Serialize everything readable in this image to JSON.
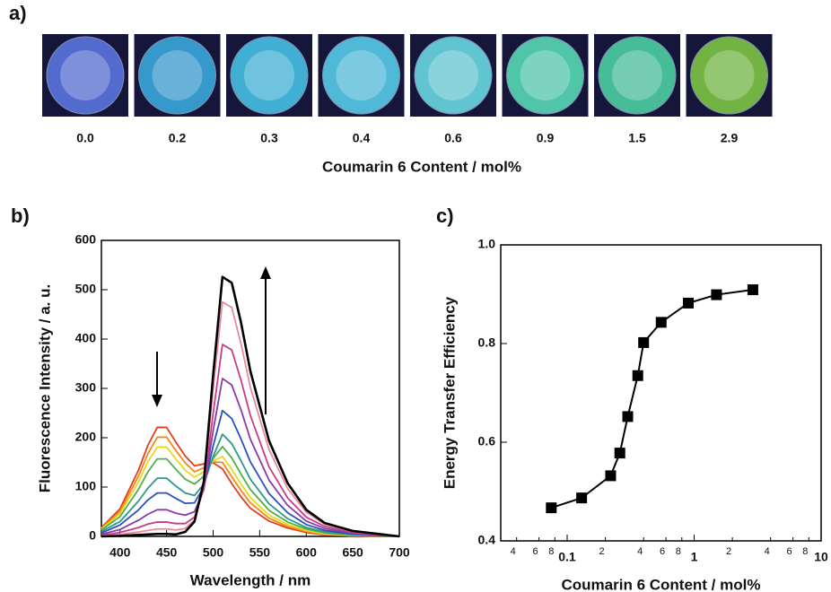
{
  "panel_labels": [
    "a)",
    "b)",
    "c)"
  ],
  "photos": {
    "labels": [
      "0.0",
      "0.2",
      "0.3",
      "0.4",
      "0.6",
      "0.9",
      "1.5",
      "2.9"
    ],
    "caption": "Coumarin 6 Content / mol%"
  },
  "chart_data": [
    {
      "type": "line",
      "xlabel": "Wavelength / nm",
      "ylabel": "Fluorescence Intensity / a. u.",
      "x": [
        380,
        400,
        420,
        430,
        440,
        450,
        460,
        470,
        480,
        490,
        500,
        510,
        520,
        530,
        540,
        560,
        580,
        600,
        620,
        650,
        700
      ],
      "xlim": [
        380,
        700
      ],
      "xticks": [
        400,
        450,
        500,
        550,
        600,
        650,
        700
      ],
      "ylim": [
        0,
        600
      ],
      "yticks": [
        0,
        100,
        200,
        300,
        400,
        500,
        600
      ],
      "series": [
        {
          "color": "#e63c1e",
          "values": [
            18,
            56,
            135,
            185,
            221,
            221,
            191,
            163,
            143,
            147,
            149,
            137,
            107,
            80,
            57,
            31,
            17,
            8,
            3,
            1,
            0
          ]
        },
        {
          "color": "#f08a1a",
          "values": [
            16,
            51,
            123,
            168,
            201,
            201,
            174,
            149,
            131,
            139,
            151,
            150,
            121,
            93,
            68,
            37,
            20,
            10,
            4,
            2,
            0
          ]
        },
        {
          "color": "#e8d81e",
          "values": [
            15,
            46,
            111,
            152,
            181,
            181,
            157,
            134,
            120,
            131,
            153,
            162,
            136,
            106,
            79,
            43,
            24,
            12,
            5,
            2,
            0
          ]
        },
        {
          "color": "#4fb04a",
          "values": [
            13,
            40,
            96,
            131,
            157,
            157,
            136,
            116,
            106,
            122,
            158,
            182,
            159,
            126,
            95,
            53,
            29,
            15,
            7,
            3,
            0
          ]
        },
        {
          "color": "#2a9a8a",
          "values": [
            10,
            30,
            72,
            98,
            118,
            118,
            102,
            88,
            83,
            106,
            162,
            207,
            188,
            153,
            116,
            66,
            36,
            18,
            9,
            3,
            0
          ]
        },
        {
          "color": "#2a4fc0",
          "values": [
            7,
            23,
            54,
            74,
            88,
            88,
            77,
            67,
            68,
            100,
            183,
            255,
            239,
            197,
            151,
            87,
            48,
            24,
            12,
            5,
            0
          ]
        },
        {
          "color": "#8a3aa8",
          "values": [
            4,
            14,
            33,
            45,
            54,
            54,
            47,
            43,
            50,
            95,
            214,
            320,
            307,
            256,
            197,
            114,
            63,
            31,
            16,
            6,
            0
          ]
        },
        {
          "color": "#c83a8a",
          "values": [
            2,
            8,
            18,
            25,
            29,
            29,
            26,
            26,
            39,
            96,
            249,
            389,
            378,
            316,
            245,
            141,
            78,
            39,
            20,
            8,
            0
          ]
        },
        {
          "color": "#e88a9a",
          "values": [
            1,
            4,
            9,
            12,
            15,
            15,
            13,
            16,
            33,
            106,
            299,
            475,
            464,
            390,
            302,
            176,
            97,
            49,
            24,
            10,
            0
          ]
        },
        {
          "color": "#000000",
          "values": [
            0,
            1,
            3,
            4,
            5,
            5,
            4,
            9,
            30,
            111,
            327,
            526,
            514,
            433,
            335,
            194,
            108,
            54,
            27,
            11,
            0
          ]
        }
      ]
    },
    {
      "type": "scatter",
      "xlabel": "Coumarin 6 Content / mol%",
      "ylabel": "Energy Transfer Efficiency",
      "log_x": true,
      "color": "#000000",
      "x": [
        0.075,
        0.13,
        0.22,
        0.26,
        0.3,
        0.36,
        0.4,
        0.55,
        0.9,
        1.5,
        2.9
      ],
      "values": [
        0.467,
        0.487,
        0.532,
        0.578,
        0.652,
        0.735,
        0.802,
        0.843,
        0.882,
        0.899,
        0.909
      ],
      "xlim": [
        0.03,
        10
      ],
      "xticks": [
        {
          "value": 0.04,
          "label": "4"
        },
        {
          "value": 0.06,
          "label": "6"
        },
        {
          "value": 0.08,
          "label": "8"
        },
        0.1,
        {
          "value": 0.2,
          "label": "2"
        },
        {
          "value": 0.4,
          "label": "4"
        },
        {
          "value": 0.6,
          "label": "6"
        },
        {
          "value": 0.8,
          "label": "8"
        },
        1,
        {
          "value": 2,
          "label": "2"
        },
        {
          "value": 4,
          "label": "4"
        },
        {
          "value": 6,
          "label": "6"
        },
        {
          "value": 8,
          "label": "8"
        },
        10
      ],
      "ylim": [
        0.4,
        1.0
      ],
      "yticks": [
        0.4,
        0.6,
        0.8,
        {
          "value": 1.0,
          "label": "1.0"
        }
      ]
    }
  ]
}
